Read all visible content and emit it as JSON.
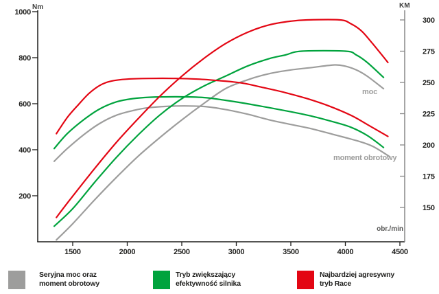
{
  "colors": {
    "stock": "#9d9d9c",
    "eco": "#00a33d",
    "race": "#e30613",
    "axis": "#1d1d1b",
    "axis_right": "#878787",
    "text": "#1d1d1b",
    "muted": "#9d9d9c"
  },
  "labels": {
    "left_unit": "Nm",
    "right_unit": "KM",
    "x_unit": "obr./min",
    "power_curve": "moc",
    "torque_curve": "moment obrotowy"
  },
  "legend": {
    "items": [
      {
        "mode": "stock",
        "line1": "Seryjna moc oraz",
        "line2": "moment obrotowy"
      },
      {
        "mode": "eco",
        "line1": "Tryb zwiększający",
        "line2": "efektywność silnika"
      },
      {
        "mode": "race",
        "line1": "Najbardziej agresywny",
        "line2": "tryb Race"
      }
    ]
  },
  "chart_data": {
    "type": "line",
    "title": "",
    "xlabel": "obr./min",
    "x_ticks": [
      1500,
      2000,
      2500,
      3000,
      3500,
      4000,
      4500
    ],
    "left_axis": {
      "label": "Nm",
      "ticks": [
        200,
        400,
        600,
        800,
        1000
      ],
      "range": [
        0,
        1000
      ]
    },
    "right_axis": {
      "label": "KM",
      "ticks": [
        150,
        175,
        200,
        225,
        250,
        275,
        300
      ],
      "range": [
        122,
        302
      ]
    },
    "grid": false,
    "legend_position": "bottom",
    "series": [
      {
        "id": "torque-stock",
        "name": "Seryjna moc oraz moment obrotowy (moment)",
        "mode": "stock",
        "axis": "left",
        "points": [
          [
            1330,
            350
          ],
          [
            1450,
            405
          ],
          [
            1600,
            465
          ],
          [
            1750,
            515
          ],
          [
            1900,
            550
          ],
          [
            2050,
            570
          ],
          [
            2200,
            583
          ],
          [
            2450,
            590
          ],
          [
            2700,
            588
          ],
          [
            2900,
            575
          ],
          [
            3100,
            555
          ],
          [
            3300,
            530
          ],
          [
            3500,
            510
          ],
          [
            3700,
            490
          ],
          [
            3900,
            465
          ],
          [
            4100,
            440
          ],
          [
            4250,
            415
          ],
          [
            4400,
            372
          ]
        ]
      },
      {
        "id": "power-stock",
        "name": "Seryjna moc oraz moment obrotowy (moc)",
        "mode": "stock",
        "axis": "right",
        "points": [
          [
            1350,
            124
          ],
          [
            1500,
            137
          ],
          [
            1700,
            156
          ],
          [
            1900,
            174
          ],
          [
            2100,
            191
          ],
          [
            2300,
            206
          ],
          [
            2500,
            220
          ],
          [
            2700,
            233
          ],
          [
            2900,
            245
          ],
          [
            3100,
            252
          ],
          [
            3300,
            257
          ],
          [
            3500,
            260
          ],
          [
            3700,
            262
          ],
          [
            3900,
            264
          ],
          [
            4000,
            263
          ],
          [
            4100,
            260
          ],
          [
            4200,
            255
          ],
          [
            4350,
            245
          ]
        ]
      },
      {
        "id": "torque-eco",
        "name": "Tryb zwiększający efektywność silnika (moment)",
        "mode": "eco",
        "axis": "left",
        "points": [
          [
            1330,
            405
          ],
          [
            1450,
            470
          ],
          [
            1600,
            530
          ],
          [
            1750,
            578
          ],
          [
            1900,
            608
          ],
          [
            2050,
            622
          ],
          [
            2200,
            628
          ],
          [
            2450,
            630
          ],
          [
            2700,
            627
          ],
          [
            2900,
            615
          ],
          [
            3100,
            600
          ],
          [
            3300,
            583
          ],
          [
            3500,
            565
          ],
          [
            3700,
            545
          ],
          [
            3900,
            520
          ],
          [
            4050,
            498
          ],
          [
            4200,
            462
          ],
          [
            4350,
            410
          ]
        ]
      },
      {
        "id": "power-eco",
        "name": "Tryb zwiększający efektywność silnika (moc)",
        "mode": "eco",
        "axis": "right",
        "points": [
          [
            1330,
            135
          ],
          [
            1500,
            149
          ],
          [
            1700,
            170
          ],
          [
            1900,
            190
          ],
          [
            2100,
            208
          ],
          [
            2300,
            224
          ],
          [
            2500,
            237
          ],
          [
            2700,
            247
          ],
          [
            2900,
            255
          ],
          [
            3100,
            263
          ],
          [
            3300,
            269
          ],
          [
            3450,
            272
          ],
          [
            3600,
            275
          ],
          [
            4000,
            275
          ],
          [
            4100,
            272
          ],
          [
            4200,
            266
          ],
          [
            4350,
            254
          ]
        ]
      },
      {
        "id": "torque-race",
        "name": "Najbardziej agresywny tryb Race (moment)",
        "mode": "race",
        "axis": "left",
        "points": [
          [
            1350,
            470
          ],
          [
            1450,
            540
          ],
          [
            1550,
            595
          ],
          [
            1650,
            645
          ],
          [
            1750,
            680
          ],
          [
            1850,
            698
          ],
          [
            2000,
            707
          ],
          [
            2200,
            710
          ],
          [
            2450,
            710
          ],
          [
            2650,
            707
          ],
          [
            2850,
            700
          ],
          [
            3050,
            690
          ],
          [
            3250,
            670
          ],
          [
            3450,
            648
          ],
          [
            3650,
            622
          ],
          [
            3850,
            590
          ],
          [
            4050,
            550
          ],
          [
            4200,
            510
          ],
          [
            4390,
            458
          ]
        ]
      },
      {
        "id": "power-race",
        "name": "Najbardziej agresywny tryb Race (moc)",
        "mode": "race",
        "axis": "right",
        "points": [
          [
            1350,
            142
          ],
          [
            1500,
            159
          ],
          [
            1700,
            181
          ],
          [
            1900,
            202
          ],
          [
            2100,
            221
          ],
          [
            2300,
            239
          ],
          [
            2500,
            255
          ],
          [
            2700,
            269
          ],
          [
            2900,
            281
          ],
          [
            3100,
            290
          ],
          [
            3300,
            296
          ],
          [
            3500,
            299
          ],
          [
            3650,
            300
          ],
          [
            3950,
            300
          ],
          [
            4050,
            297
          ],
          [
            4150,
            291
          ],
          [
            4250,
            281
          ],
          [
            4390,
            266
          ]
        ]
      }
    ]
  }
}
